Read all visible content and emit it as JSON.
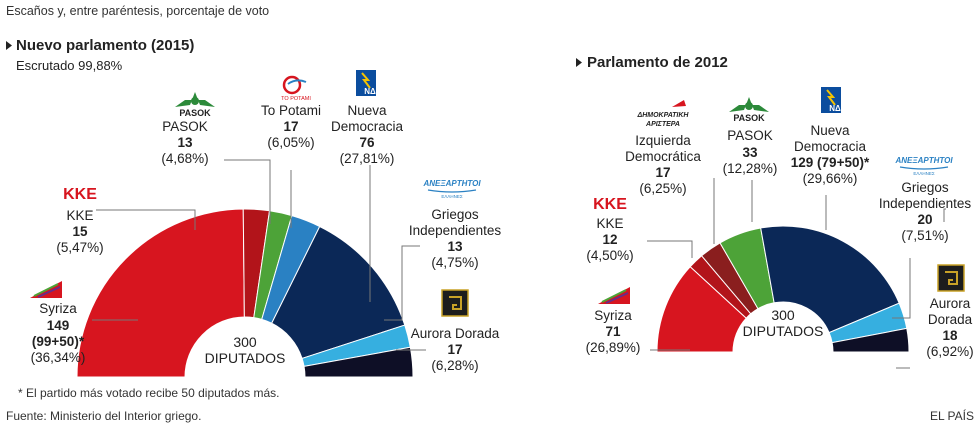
{
  "header": {
    "subtitle": "Escaños y, entre paréntesis, porcentaje de voto"
  },
  "footer": {
    "note": "* El partido más votado recibe 50 diputados más.",
    "source": "Fuente: Ministerio del Interior griego.",
    "credit": "EL PAÍS"
  },
  "colors": {
    "syriza": "#d7151f",
    "kke": "#b2141a",
    "dimar": "#8a1e1e",
    "pasok": "#4da338",
    "potami": "#2a81c3",
    "nd": "#0b2857",
    "anel": "#36afe0",
    "xa": "#0e0f26"
  },
  "logos": {
    "pasok": "PASOK",
    "nd": "ΝΔ",
    "kke": "KKE",
    "potami": "TO POTAMI",
    "anel": "ΑΝΕΞΑΡΤΗΤΟΙ",
    "anel_sub": "ΕΛΛΗΝΕΣ",
    "dimar": "ΔΗΜΟΚΡΑΤΙΚΗ",
    "dimar2": "ΑΡΙΣΤΕΡΑ"
  },
  "chart_data": [
    {
      "type": "pie",
      "variant": "semicircle",
      "title": "Nuevo parlamento (2015)",
      "subtitle": "Escrutado 99,88%",
      "total_label": "300",
      "total_sublabel": "DIPUTADOS",
      "total": 300,
      "parties": [
        {
          "key": "syriza",
          "name": "Syriza",
          "seats": 149,
          "seats_label": "149",
          "seats_detail": "(99+50)*",
          "pct": "(36,34%)"
        },
        {
          "key": "kke",
          "name": "KKE",
          "seats": 15,
          "seats_label": "15",
          "pct": "(5,47%)"
        },
        {
          "key": "pasok",
          "name": "PASOK",
          "seats": 13,
          "seats_label": "13",
          "pct": "(4,68%)"
        },
        {
          "key": "potami",
          "name": "To Potami",
          "seats": 17,
          "seats_label": "17",
          "pct": "(6,05%)"
        },
        {
          "key": "nd",
          "name": "Nueva Democracia",
          "name_lines": [
            "Nueva",
            "Democracia"
          ],
          "seats": 76,
          "seats_label": "76",
          "pct": "(27,81%)"
        },
        {
          "key": "anel",
          "name": "Griegos Independientes",
          "name_lines": [
            "Griegos",
            "Independientes"
          ],
          "seats": 13,
          "seats_label": "13",
          "pct": "(4,75%)"
        },
        {
          "key": "xa",
          "name": "Aurora Dorada",
          "seats": 17,
          "seats_label": "17",
          "pct": "(6,28%)"
        }
      ]
    },
    {
      "type": "pie",
      "variant": "semicircle",
      "title": "Parlamento de 2012",
      "total_label": "300",
      "total_sublabel": "DIPUTADOS",
      "total": 300,
      "parties": [
        {
          "key": "syriza",
          "name": "Syriza",
          "seats": 71,
          "seats_label": "71",
          "pct": "(26,89%)"
        },
        {
          "key": "kke",
          "name": "KKE",
          "seats": 12,
          "seats_label": "12",
          "pct": "(4,50%)"
        },
        {
          "key": "dimar",
          "name": "Izquierda Democrática",
          "name_lines": [
            "Izquierda",
            "Democrática"
          ],
          "seats": 17,
          "seats_label": "17",
          "pct": "(6,25%)"
        },
        {
          "key": "pasok",
          "name": "PASOK",
          "seats": 33,
          "seats_label": "33",
          "pct": "(12,28%)"
        },
        {
          "key": "nd",
          "name": "Nueva Democracia",
          "name_lines": [
            "Nueva",
            "Democracia"
          ],
          "seats": 129,
          "seats_label": "129 (79+50)*",
          "pct": "(29,66%)"
        },
        {
          "key": "anel",
          "name": "Griegos Independientes",
          "name_lines": [
            "Griegos",
            "Independientes"
          ],
          "seats": 20,
          "seats_label": "20",
          "pct": "(7,51%)"
        },
        {
          "key": "xa",
          "name": "Aurora Dorada",
          "name_lines": [
            "Aurora",
            "Dorada"
          ],
          "seats": 18,
          "seats_label": "18",
          "pct": "(6,92%)"
        }
      ]
    }
  ]
}
